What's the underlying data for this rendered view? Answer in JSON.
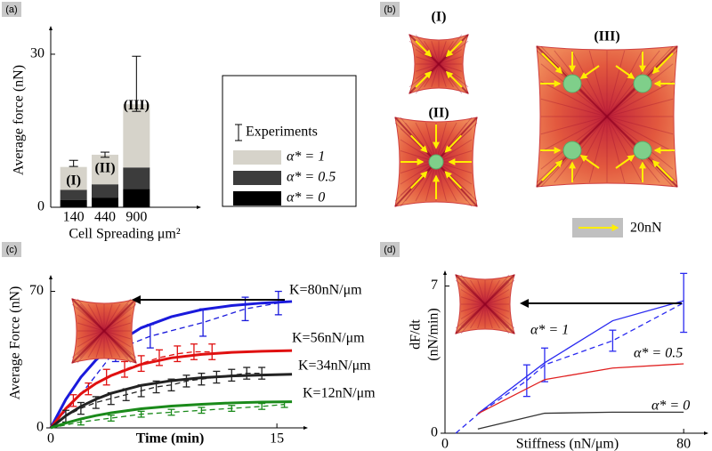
{
  "panel_b": {
    "label": "(b)",
    "cells": [
      "(I)",
      "(II)",
      "(III)"
    ],
    "scale_label": "20nN"
  },
  "chart_data": [
    {
      "type": "bar",
      "panel_label": "(a)",
      "stacked": true,
      "categories": [
        "140",
        "440",
        "900"
      ],
      "series": [
        {
          "name": "α* = 0",
          "color": "#000000",
          "values": [
            1.4,
            1.9,
            3.6
          ]
        },
        {
          "name": "α* = 0.5",
          "color": "#3c3c3c",
          "values": [
            2.0,
            2.6,
            4.2
          ]
        },
        {
          "name": "α* = 1",
          "color": "#d6d3ca",
          "values": [
            4.5,
            5.8,
            12.4
          ]
        }
      ],
      "errorbars": {
        "name": "Experiments",
        "color": "#000000",
        "values": [
          8.6,
          10.3,
          24.2
        ],
        "errors": [
          0.6,
          0.5,
          5.4
        ]
      },
      "annotations": [
        "(I)",
        "(II)",
        "(III)"
      ],
      "ylabel": "Average force (nN)",
      "xlabel": "Cell Spreading μm²",
      "ylim": [
        0,
        34
      ],
      "yticks": [
        0,
        30
      ]
    },
    {
      "type": "line",
      "panel_label": "(c)",
      "x": [
        0,
        1,
        2,
        3,
        4,
        6,
        8,
        10,
        12,
        14,
        16
      ],
      "series": [
        {
          "name": "K=80nN/μm",
          "color": "#1a1adc",
          "values": [
            0,
            14.6,
            26,
            34.8,
            41.7,
            51.3,
            57,
            60.6,
            62.7,
            64,
            64.8
          ],
          "experiment": {
            "x": [
              0,
              2.5,
              4.3,
              6.6,
              10.1,
              12.9,
              15.1
            ],
            "values": [
              0,
              22,
              40,
              47,
              54,
              61,
              64
            ],
            "errors": [
              null,
              null,
              6,
              6,
              7,
              6,
              6
            ]
          }
        },
        {
          "name": "K=56nN/μm",
          "color": "#e01010",
          "values": [
            0,
            9.9,
            17.5,
            22.8,
            26.8,
            32.6,
            35.9,
            37.7,
            38.7,
            39.3,
            39.6
          ],
          "experiment": {
            "x": [
              0,
              1.5,
              2.5,
              3.7,
              4.9,
              6,
              7.2,
              8.4,
              9.5,
              10.7
            ],
            "values": [
              0,
              14,
              20,
              26,
              30,
              33,
              36,
              38,
              39,
              39
            ],
            "errors": [
              null,
              3,
              3,
              4,
              4,
              4,
              4,
              4,
              4,
              4
            ]
          }
        },
        {
          "name": "K=34nN/μm",
          "color": "#222222",
          "values": [
            0,
            6.2,
            11,
            14.7,
            17.7,
            21.8,
            24.2,
            25.7,
            26.6,
            27.1,
            27.5
          ],
          "experiment": {
            "x": [
              0,
              1,
              2,
              3,
              4,
              5,
              6,
              7,
              8,
              9,
              10,
              11,
              12,
              13,
              14
            ],
            "values": [
              0,
              6,
              10,
              13,
              15,
              17,
              19,
              21,
              22,
              24,
              25,
              26,
              27,
              28,
              28
            ],
            "errors": [
              null,
              3,
              3,
              3,
              3,
              3,
              3,
              3,
              3,
              3,
              3,
              3,
              3,
              3,
              3
            ]
          }
        },
        {
          "name": "K=12nN/μm",
          "color": "#1a8a1a",
          "values": [
            0,
            2.5,
            4.6,
            6.3,
            7.7,
            9.8,
            11.2,
            12.1,
            12.8,
            13.2,
            13.4
          ],
          "experiment": {
            "x": [
              0,
              2,
              4,
              6,
              8,
              10,
              12,
              14,
              15.5
            ],
            "values": [
              0,
              3,
              5,
              7,
              8,
              9,
              10,
              11,
              12
            ],
            "errors": [
              null,
              1.5,
              1.5,
              1.5,
              1.5,
              1.5,
              1.5,
              1.5,
              1.5
            ]
          }
        }
      ],
      "xlabel": "Time (min)",
      "ylabel": "Average Force (nN)",
      "xlim": [
        0,
        17
      ],
      "ylim": [
        0,
        78
      ],
      "xticks": [
        0,
        15
      ],
      "yticks": [
        0,
        70
      ]
    },
    {
      "type": "line",
      "panel_label": "(d)",
      "x": [
        11,
        33.4,
        56.2,
        80
      ],
      "series": [
        {
          "name": "α* = 1",
          "color": "#2a2af0",
          "values": [
            0.93,
            3.35,
            5.35,
            6.3
          ],
          "experiment": {
            "x": [
              3.6,
              11,
              27.4,
              33.4,
              56.2,
              80
            ],
            "values": [
              0,
              0.9,
              2.5,
              3.25,
              4.4,
              6.2
            ],
            "errors": [
              null,
              null,
              0.75,
              0.8,
              0.5,
              1.4
            ]
          }
        },
        {
          "name": "α* = 0.5",
          "color": "#e02020",
          "values": [
            0.93,
            2.55,
            3.1,
            3.3
          ]
        },
        {
          "name": "α* = 0",
          "color": "#333333",
          "values": [
            0.2,
            0.95,
            1.0,
            1.0
          ]
        }
      ],
      "xlabel": "Stiffness (nN/μm)",
      "ylabel": [
        "dF/dt",
        "(nN/min)"
      ],
      "xlim": [
        0,
        88
      ],
      "ylim": [
        0,
        7.7
      ],
      "xticks": [
        0,
        80
      ],
      "yticks": [
        0,
        7
      ]
    }
  ]
}
